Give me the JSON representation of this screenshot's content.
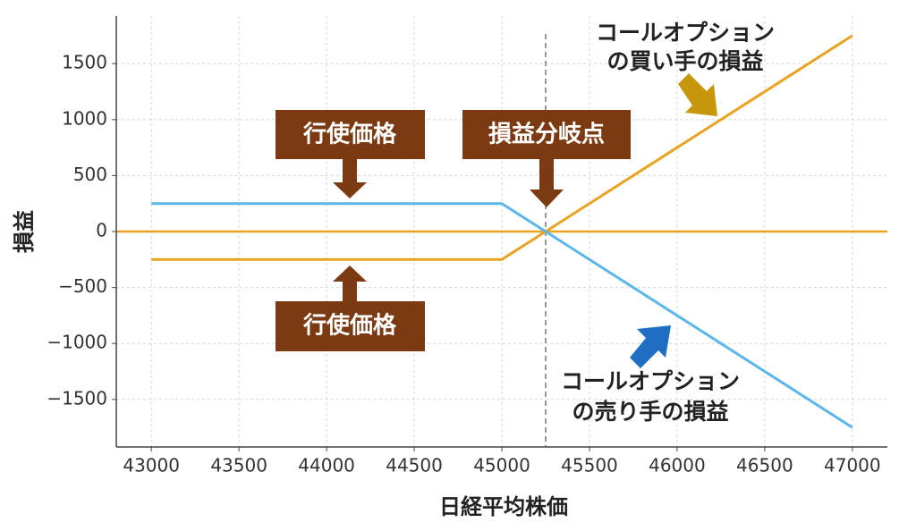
{
  "chart_data": {
    "type": "line",
    "xlabel": "日経平均株価",
    "ylabel": "損益",
    "x": [
      43000,
      45000,
      47000
    ],
    "series": [
      {
        "name": "コールオプションの買い手の損益",
        "color": "#e8a321",
        "values": [
          -250,
          -250,
          1750
        ]
      },
      {
        "name": "コールオプションの売り手の損益",
        "color": "#5bb6ea",
        "values": [
          250,
          250,
          -1750
        ]
      }
    ],
    "hline": 0,
    "hline_color": "#e8a321",
    "vline": 45250,
    "xlim": [
      42800,
      47200
    ],
    "ylim": [
      -1925,
      1925
    ],
    "xticks": [
      43000,
      43500,
      44000,
      44500,
      45000,
      45500,
      46000,
      46500,
      47000
    ],
    "yticks": [
      {
        "value": -1500,
        "label": "−1500"
      },
      {
        "value": -1000,
        "label": "−1000"
      },
      {
        "value": -500,
        "label": "−500"
      },
      0,
      500,
      1000,
      1500
    ],
    "grid": true,
    "annotations": [
      {
        "lines": [
          "コールオプション",
          "の買い手の損益"
        ]
      },
      {
        "lines": [
          "コールオプション",
          "の売り手の損益"
        ]
      },
      {
        "box": "行使価格"
      },
      {
        "box": "損益分岐点"
      },
      {
        "box": "行使価格"
      }
    ]
  }
}
